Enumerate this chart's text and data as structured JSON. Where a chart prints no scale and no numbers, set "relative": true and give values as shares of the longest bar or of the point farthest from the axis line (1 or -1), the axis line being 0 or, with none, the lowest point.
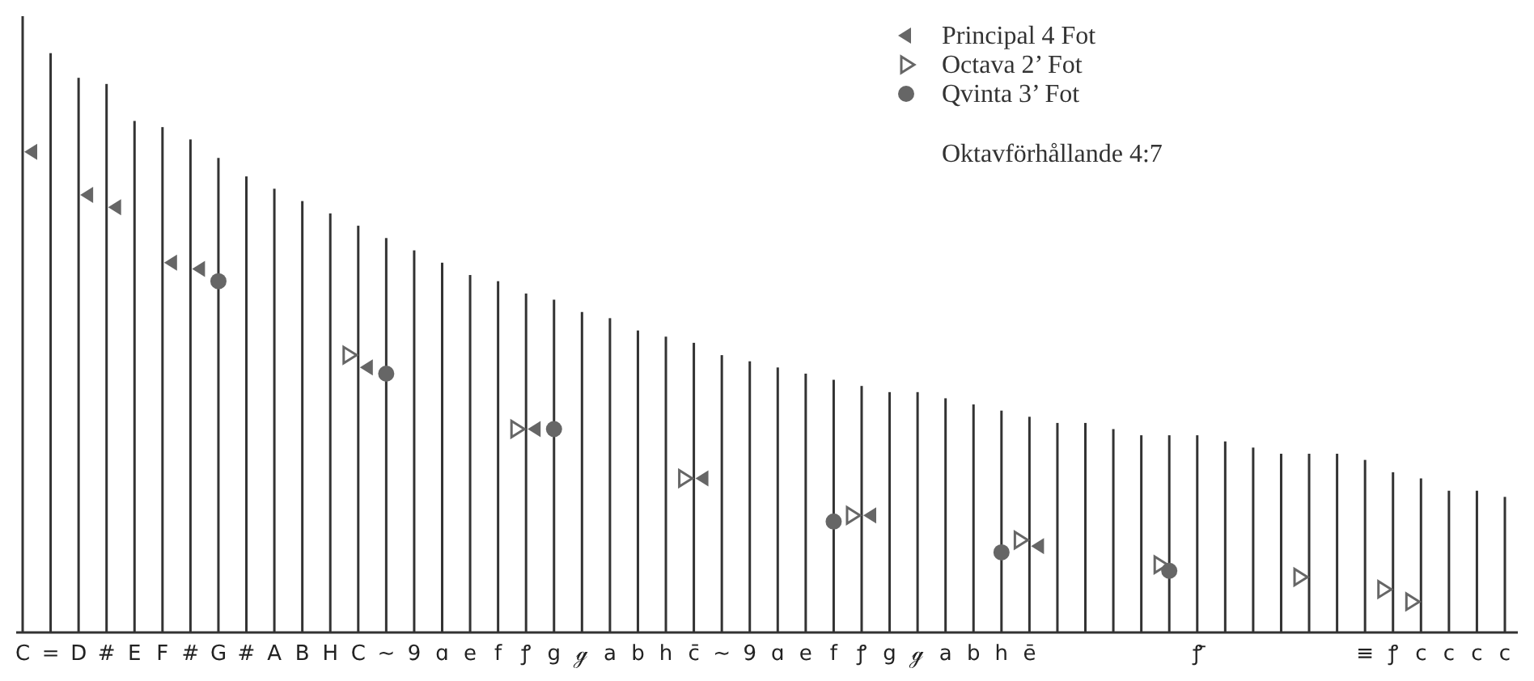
{
  "chart_data": {
    "type": "bar",
    "relative": true,
    "grid": false,
    "legend": "top right",
    "annotations": [
      "Oktavförhållande 4:7"
    ],
    "categories": [
      "C",
      "=",
      "D",
      "#",
      "E",
      "F",
      "#",
      "G",
      "#",
      "A",
      "B",
      "H",
      "C",
      "∼",
      "9",
      "ɑ",
      "e",
      "f",
      "ꝭ",
      "g",
      "ℊ",
      "a",
      "b",
      "h",
      "c̄",
      "∼",
      "9",
      "ɑ",
      "e",
      "f",
      "ꝭ",
      "g",
      "ℊ",
      "a",
      "b",
      "h",
      "ē",
      null,
      null,
      null,
      null,
      null,
      "ꝭ̄",
      null,
      null,
      null,
      null,
      null,
      "≡",
      "ꝭ",
      "c",
      "c",
      "c",
      "c"
    ],
    "series": [
      {
        "color": "#333333",
        "values": [
          1.0,
          0.94,
          0.9,
          0.89,
          0.83,
          0.82,
          0.8,
          0.77,
          0.74,
          0.72,
          0.7,
          0.68,
          0.66,
          0.64,
          0.62,
          0.6,
          0.58,
          0.57,
          0.55,
          0.54,
          0.52,
          0.51,
          0.49,
          0.48,
          0.47,
          0.45,
          0.44,
          0.43,
          0.42,
          0.41,
          0.4,
          0.39,
          0.39,
          0.38,
          0.37,
          0.36,
          0.35,
          0.34,
          0.34,
          0.33,
          0.32,
          0.32,
          0.32,
          0.31,
          0.3,
          0.29,
          0.29,
          0.29,
          0.28,
          0.26,
          0.25,
          0.23,
          0.23,
          0.22
        ]
      },
      {
        "type": "scatter",
        "name": "Principal 4 Fot",
        "color": "#666666",
        "marker": "triangle-left",
        "values": [
          0.78,
          null,
          0.71,
          0.69,
          null,
          0.6,
          0.59,
          null,
          null,
          null,
          null,
          null,
          0.43,
          null,
          null,
          null,
          null,
          null,
          0.33,
          null,
          null,
          null,
          null,
          null,
          0.25,
          null,
          null,
          null,
          null,
          null,
          0.19,
          null,
          null,
          null,
          null,
          null,
          0.14,
          null,
          null,
          null,
          null,
          null,
          null,
          null,
          null,
          null,
          null,
          null,
          null,
          null,
          null,
          null,
          null,
          null
        ]
      },
      {
        "type": "scatter",
        "name": "Octava 2’ Fot",
        "color": "#666666",
        "marker": "triangle-right-open",
        "values": [
          null,
          null,
          null,
          null,
          null,
          null,
          null,
          null,
          null,
          null,
          null,
          null,
          0.45,
          null,
          null,
          null,
          null,
          null,
          0.33,
          null,
          null,
          null,
          null,
          null,
          0.25,
          null,
          null,
          null,
          null,
          null,
          0.19,
          null,
          null,
          null,
          null,
          null,
          0.15,
          null,
          null,
          null,
          null,
          0.11,
          null,
          null,
          null,
          null,
          0.09,
          null,
          null,
          0.07,
          0.05,
          null,
          null,
          null
        ]
      },
      {
        "type": "scatter",
        "name": "Qvinta 3’ Fot",
        "color": "#666666",
        "marker": "circle",
        "values": [
          null,
          null,
          null,
          null,
          null,
          null,
          null,
          0.57,
          null,
          null,
          null,
          null,
          null,
          0.42,
          null,
          null,
          null,
          null,
          null,
          0.33,
          null,
          null,
          null,
          null,
          null,
          null,
          null,
          null,
          null,
          0.18,
          null,
          null,
          null,
          null,
          null,
          0.13,
          null,
          null,
          null,
          null,
          null,
          0.1,
          null,
          null,
          null,
          null,
          null,
          null,
          null,
          null,
          null,
          null,
          null,
          null
        ]
      }
    ]
  }
}
